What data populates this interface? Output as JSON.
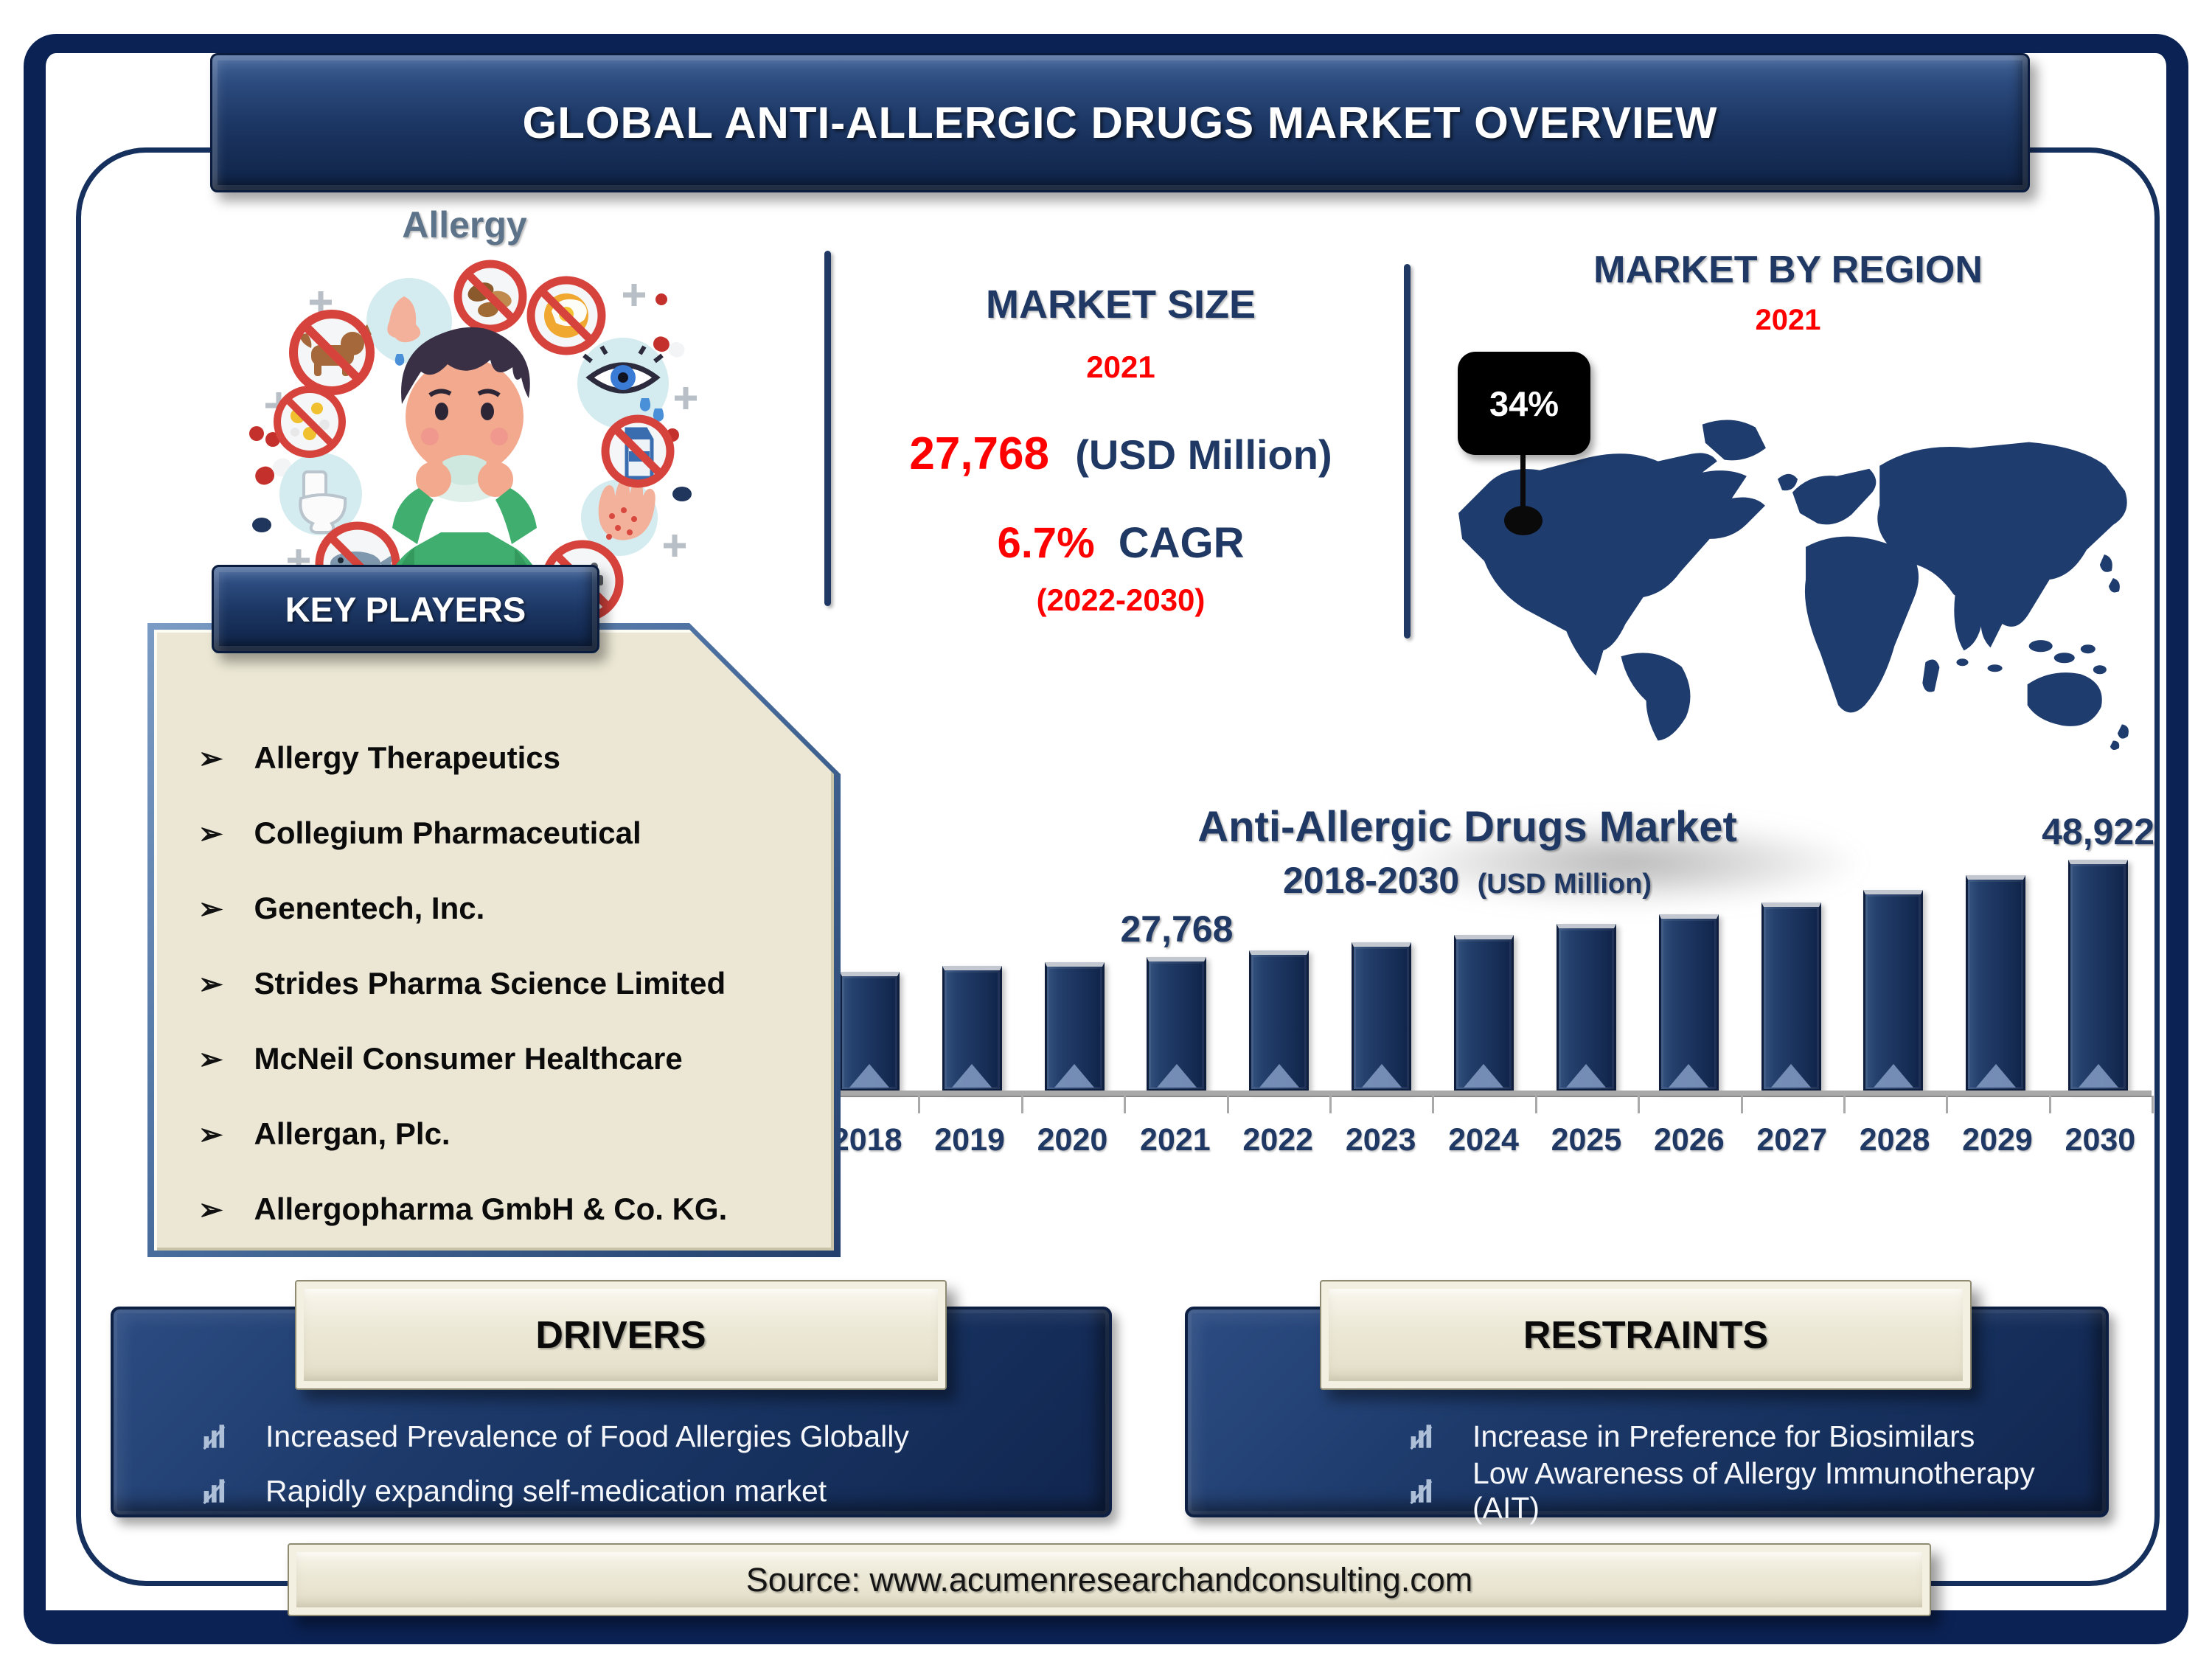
{
  "banner": {
    "title": "GLOBAL ANTI-ALLERGIC DRUGS MARKET OVERVIEW"
  },
  "illustration": {
    "caption": "Allergy"
  },
  "market_size": {
    "heading": "MARKET SIZE",
    "year": "2021",
    "value": "27,768",
    "unit": "(USD Million)",
    "cagr_value": "6.7%",
    "cagr_label": "CAGR",
    "period": "(2022-2030)"
  },
  "region": {
    "heading": "MARKET BY REGION",
    "year": "2021",
    "callout_value": "34%"
  },
  "key_players": {
    "heading": "KEY PLAYERS",
    "bullet": "➢",
    "items": [
      "Allergy Therapeutics",
      "Collegium Pharmaceutical",
      "Genentech, Inc.",
      "Strides Pharma Science Limited",
      "McNeil Consumer Healthcare",
      "Allergan, Plc.",
      "Allergopharma GmbH & Co. KG."
    ]
  },
  "chart_data": {
    "type": "bar",
    "title": "Anti-Allergic Drugs Market",
    "subtitle_range": "2018-2030",
    "subtitle_unit": "(USD Million)",
    "categories": [
      "2018",
      "2019",
      "2020",
      "2021",
      "2022",
      "2023",
      "2024",
      "2025",
      "2026",
      "2027",
      "2028",
      "2029",
      "2030"
    ],
    "values": [
      24600,
      25900,
      26600,
      27768,
      29150,
      30900,
      32500,
      34900,
      37050,
      39600,
      42350,
      45550,
      48922
    ],
    "data_labels": {
      "2021": "27,768",
      "2030": "48,922"
    },
    "xlabel": "",
    "ylabel": "",
    "ylim": [
      0,
      50500
    ],
    "gridlines": "off",
    "legend": "none",
    "bar_color": "#1D3560",
    "axis_color": "#A9A9A9"
  },
  "drivers": {
    "heading": "DRIVERS",
    "items": [
      "Increased Prevalence of Food Allergies Globally",
      "Rapidly expanding self-medication market"
    ]
  },
  "restraints": {
    "heading": "RESTRAINTS",
    "items": [
      "Increase in Preference for Biosimilars",
      "Low Awareness of Allergy Immunotherapy (AIT)"
    ]
  },
  "source": {
    "text": "Source: www.acumenresearchandconsulting.com"
  },
  "colors": {
    "navy_text": "#1F3864",
    "accent_red": "#FF0000",
    "map_navy": "#1E3C6E",
    "cream_panel": "#EBE7D4",
    "banner_navy": "#1D3866",
    "prohibition_red": "#D6423C",
    "caption_slate": "#5D7389"
  }
}
